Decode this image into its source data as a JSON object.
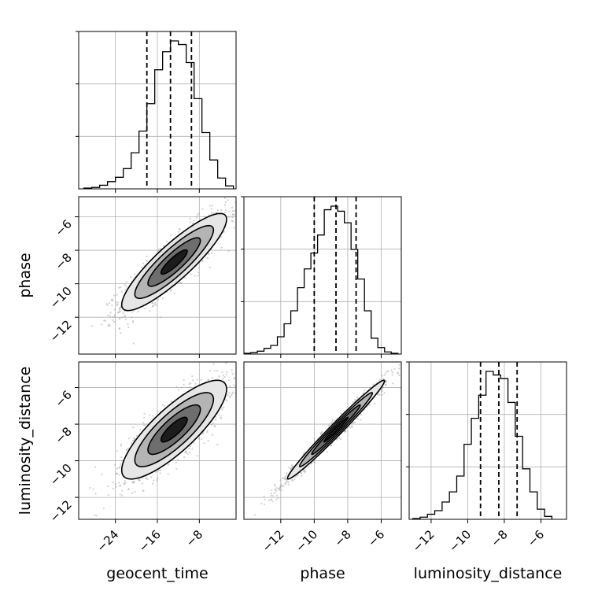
{
  "chart_data": {
    "type": "corner",
    "parameters": [
      "geocent_time",
      "phase",
      "luminosity_distance"
    ],
    "ranges": {
      "geocent_time": [
        -31,
        -1
      ],
      "phase": [
        -14.2,
        -4.8
      ],
      "luminosity_distance": [
        -13.2,
        -4.6
      ]
    },
    "ticks": {
      "geocent_time": [
        -24,
        -16,
        -8
      ],
      "phase": [
        -12,
        -10,
        -8,
        -6
      ],
      "luminosity_distance": [
        -12,
        -10,
        -8,
        -6
      ]
    },
    "tick_labels": {
      "geocent_time": [
        "−24",
        "−16",
        "−8"
      ],
      "phase": [
        "−12",
        "−10",
        "−8",
        "−6"
      ],
      "luminosity_distance": [
        "−12",
        "−10",
        "−8",
        "−6"
      ]
    },
    "quantiles": {
      "geocent_time": [
        -18,
        -13.5,
        -9.5
      ],
      "phase": [
        -10,
        -8.7,
        -7.5
      ],
      "luminosity_distance": [
        -9.3,
        -8.3,
        -7.3
      ]
    },
    "histograms": {
      "geocent_time": {
        "edges": [
          -30,
          -28.5,
          -27,
          -25.5,
          -24,
          -22.5,
          -21,
          -19.5,
          -18,
          -16.5,
          -15,
          -13.5,
          -12,
          -10.5,
          -9,
          -7.5,
          -6,
          -4.5,
          -3,
          -1.5
        ],
        "counts": [
          1,
          2,
          5,
          10,
          16,
          28,
          50,
          80,
          118,
          165,
          190,
          205,
          200,
          175,
          125,
          78,
          40,
          15,
          4
        ]
      },
      "phase": {
        "edges": [
          -14.2,
          -13.8,
          -13.4,
          -13.0,
          -12.6,
          -12.2,
          -11.8,
          -11.4,
          -11.0,
          -10.6,
          -10.2,
          -9.8,
          -9.4,
          -9.0,
          -8.6,
          -8.2,
          -7.8,
          -7.4,
          -7.0,
          -6.6,
          -6.2,
          -5.8,
          -5.4,
          -5.0
        ],
        "counts": [
          1,
          2,
          4,
          8,
          12,
          24,
          42,
          60,
          92,
          118,
          140,
          165,
          200,
          205,
          198,
          182,
          145,
          104,
          60,
          22,
          9,
          3,
          1
        ]
      },
      "luminosity_distance": {
        "edges": [
          -13,
          -12.6,
          -12.2,
          -11.8,
          -11.4,
          -11.0,
          -10.6,
          -10.2,
          -9.8,
          -9.4,
          -9.0,
          -8.6,
          -8.2,
          -7.8,
          -7.4,
          -7.0,
          -6.6,
          -6.2,
          -5.8,
          -5.4
        ],
        "counts": [
          1,
          3,
          7,
          12,
          24,
          38,
          60,
          104,
          140,
          172,
          205,
          200,
          195,
          162,
          115,
          70,
          38,
          14,
          4
        ]
      }
    },
    "joint": {
      "geocent_time|phase": {
        "mean": [
          -12.8,
          -8.7
        ],
        "sd": [
          5.0,
          1.45
        ],
        "rho": 0.88
      },
      "geocent_time|luminosity_distance": {
        "mean": [
          -12.8,
          -8.3
        ],
        "sd": [
          5.0,
          1.35
        ],
        "rho": 0.82
      },
      "phase|luminosity_distance": {
        "mean": [
          -8.7,
          -8.3
        ],
        "sd": [
          1.45,
          1.35
        ],
        "rho": 0.985
      }
    },
    "grid": true,
    "contour_levels": [
      0.5,
      1.0,
      1.5,
      2.0
    ],
    "colors": {
      "line": "#000000",
      "grid": "#b0b0b0",
      "points": "#9a9a9a",
      "fills": [
        "#ffffff",
        "#e6e6e6",
        "#b4b4b4",
        "#6e6e6e",
        "#1c1c1c"
      ]
    }
  }
}
